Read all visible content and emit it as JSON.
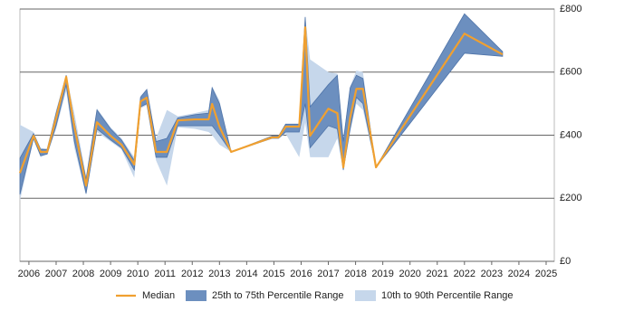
{
  "chart_data": {
    "type": "line-band",
    "x": [
      2005.67,
      2006.17,
      2006.43,
      2006.67,
      2007.0,
      2007.37,
      2007.67,
      2008.1,
      2008.5,
      2009.0,
      2009.4,
      2009.87,
      2010.1,
      2010.33,
      2010.67,
      2011.07,
      2011.47,
      2012.1,
      2012.6,
      2012.73,
      2013.0,
      2013.43,
      2014.93,
      2015.17,
      2015.43,
      2015.93,
      2016.15,
      2016.33,
      2017.0,
      2017.33,
      2017.55,
      2017.8,
      2018.03,
      2018.27,
      2018.75,
      2022.0,
      2023.4
    ],
    "series": [
      {
        "name": "10th to 90th Percentile Range",
        "color": "#c6d7eb",
        "low": [
          192,
          385,
          330,
          340,
          420,
          540,
          360,
          210,
          410,
          380,
          355,
          265,
          485,
          495,
          320,
          240,
          425,
          420,
          410,
          400,
          370,
          347,
          390,
          390,
          405,
          330,
          440,
          330,
          330,
          390,
          285,
          410,
          500,
          480,
          298,
          660,
          650
        ],
        "high": [
          433,
          410,
          360,
          355,
          480,
          590,
          470,
          270,
          485,
          425,
          390,
          330,
          525,
          545,
          390,
          480,
          460,
          470,
          480,
          555,
          510,
          347,
          397,
          397,
          435,
          435,
          775,
          640,
          600,
          595,
          390,
          555,
          605,
          600,
          298,
          785,
          665
        ]
      },
      {
        "name": "25th to 75th Percentile Range",
        "color": "#6c8fbf",
        "low": [
          212,
          390,
          335,
          340,
          430,
          560,
          380,
          215,
          420,
          385,
          360,
          290,
          490,
          500,
          330,
          330,
          430,
          430,
          430,
          430,
          400,
          347,
          390,
          390,
          410,
          410,
          500,
          360,
          430,
          420,
          290,
          420,
          520,
          500,
          298,
          660,
          650
        ],
        "high": [
          327,
          405,
          355,
          355,
          470,
          590,
          440,
          260,
          480,
          420,
          385,
          320,
          520,
          545,
          380,
          390,
          455,
          465,
          470,
          550,
          500,
          347,
          397,
          397,
          435,
          435,
          775,
          490,
          560,
          590,
          380,
          550,
          590,
          580,
          298,
          785,
          665
        ]
      },
      {
        "name": "Median",
        "color": "#f0a030",
        "values": [
          280,
          398,
          347,
          347,
          455,
          585,
          427,
          240,
          441,
          398,
          370,
          307,
          507,
          519,
          347,
          347,
          447,
          450,
          450,
          499,
          427,
          347,
          393,
          393,
          427,
          427,
          742,
          398,
          484,
          470,
          298,
          456,
          547,
          547,
          298,
          722,
          656
        ]
      }
    ],
    "xlim": [
      2005.67,
      2025.3
    ],
    "xticks": [
      2006,
      2007,
      2008,
      2009,
      2010,
      2011,
      2012,
      2013,
      2014,
      2015,
      2016,
      2017,
      2018,
      2019,
      2020,
      2021,
      2022,
      2023,
      2024,
      2025
    ],
    "ylim": [
      0,
      800
    ],
    "yticks": [
      {
        "value": 0,
        "label": "£0"
      },
      {
        "value": 200,
        "label": "£200"
      },
      {
        "value": 400,
        "label": "£400"
      },
      {
        "value": 600,
        "label": "£600"
      },
      {
        "value": 800,
        "label": "£800"
      }
    ],
    "grid": true
  }
}
